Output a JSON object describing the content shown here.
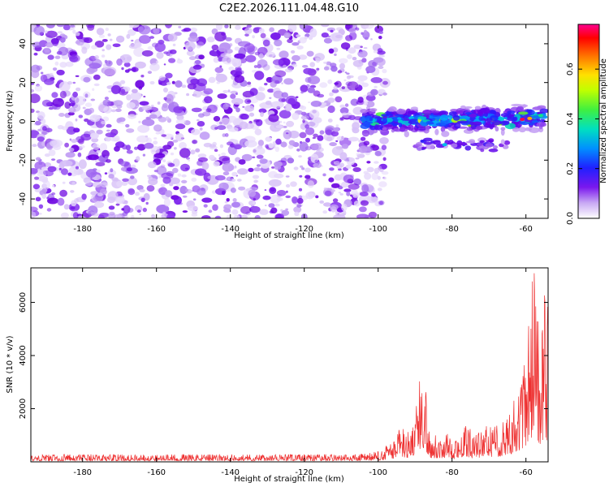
{
  "chart_data": [
    {
      "type": "heatmap",
      "title": "C2E2.2026.111.04.48.G10",
      "xlabel": "Height of straight line (km)",
      "ylabel": "Frequency (Hz)",
      "xlim": [
        -194,
        -54
      ],
      "ylim": [
        -50,
        50
      ],
      "xticks": [
        -180,
        -160,
        -140,
        -120,
        -100,
        -80,
        -60
      ],
      "yticks": [
        -40,
        -20,
        0,
        20,
        40
      ],
      "colorbar": {
        "label": "Normalized spectral amplitude",
        "range": [
          0.0,
          0.78
        ],
        "ticks": [
          0.0,
          0.2,
          0.4,
          0.6
        ],
        "tick_labels": [
          "0.0",
          "0.2",
          "0.4",
          "0.6"
        ],
        "colormap": [
          "#ffffff",
          "#b07ef0",
          "#6a00e8",
          "#2020ff",
          "#00b0ff",
          "#00e0a0",
          "#80ff00",
          "#ffff00",
          "#ff8000",
          "#ff0000",
          "#ff00a0"
        ]
      },
      "features": [
        {
          "name": "broadband noise",
          "x_range": [
            -194,
            -101
          ],
          "y_range": [
            -50,
            50
          ],
          "amplitude": 0.05
        },
        {
          "name": "main band",
          "x_range": [
            -104,
            -55
          ],
          "y_center": 0,
          "y_width": 6,
          "amplitude": 0.3
        },
        {
          "name": "secondary band",
          "x_range": [
            -90,
            -65
          ],
          "y_center": -12,
          "y_width": 3,
          "amplitude": 0.25
        }
      ]
    },
    {
      "type": "line",
      "xlabel": "Height of straight line (km)",
      "ylabel": "SNR (10 * v/v)",
      "xlim": [
        -194,
        -54
      ],
      "ylim": [
        0,
        7300
      ],
      "xticks": [
        -180,
        -160,
        -140,
        -120,
        -100,
        -80,
        -60
      ],
      "yticks": [
        2000,
        4000,
        6000
      ],
      "color": "#ee3030",
      "series": [
        {
          "name": "SNR",
          "x": [
            -194,
            -180,
            -160,
            -140,
            -120,
            -105,
            -100,
            -96,
            -94,
            -92,
            -90,
            -88,
            -87,
            -86,
            -84,
            -82,
            -80,
            -78,
            -76,
            -74,
            -72,
            -70,
            -68,
            -66,
            -64,
            -62,
            -60,
            -59,
            -58,
            -57,
            -56,
            -55,
            -54
          ],
          "values": [
            250,
            250,
            250,
            250,
            250,
            260,
            350,
            700,
            1200,
            1000,
            1700,
            3300,
            2500,
            1000,
            900,
            1000,
            800,
            1000,
            1200,
            1000,
            1000,
            1300,
            1200,
            1500,
            2000,
            2500,
            3500,
            5000,
            7200,
            5500,
            4000,
            6000,
            5000
          ]
        }
      ]
    }
  ]
}
